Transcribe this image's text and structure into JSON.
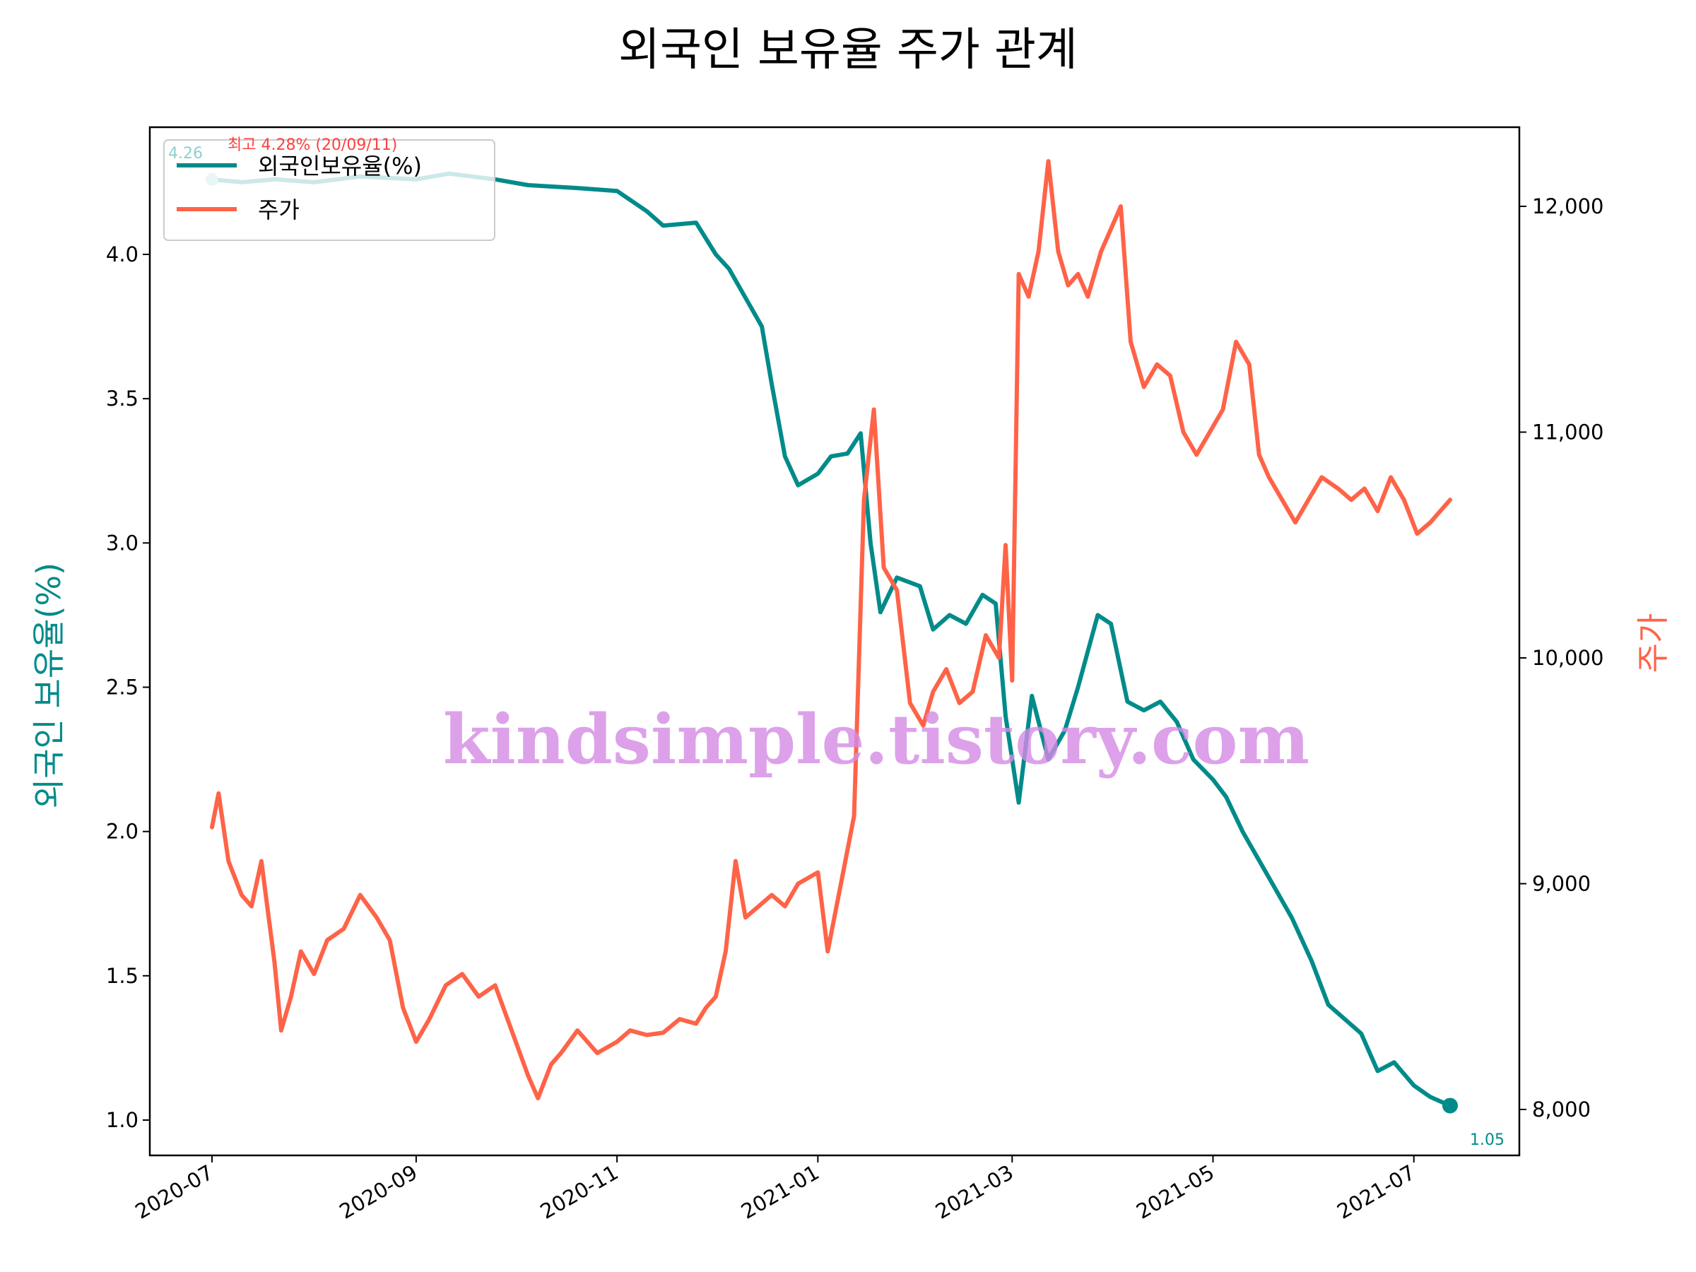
{
  "title": "외국인 보유율 주가 관계",
  "watermark": "kindsimple.tistory.com",
  "colors": {
    "ownership": "#008b8a",
    "price": "#ff6347",
    "watermark": "#d58ae6"
  },
  "chart_data": {
    "type": "line",
    "title": "외국인 보유율 주가 관계",
    "x_range": [
      "2020-07-01",
      "2021-07-12"
    ],
    "x_ticks": [
      "2020-07",
      "2020-09",
      "2020-11",
      "2021-01",
      "2021-03",
      "2021-05",
      "2021-07"
    ],
    "y_left": {
      "label": "외국인 보유율(%)",
      "range": [
        0.9,
        4.45
      ],
      "ticks": [
        "1.0",
        "1.5",
        "2.0",
        "2.5",
        "3.0",
        "3.5",
        "4.0"
      ]
    },
    "y_right": {
      "label": "주가",
      "range": [
        7800,
        12350
      ],
      "ticks": [
        "8,000",
        "9,000",
        "10,000",
        "11,000",
        "12,000"
      ]
    },
    "legend": {
      "placement": "upper-left",
      "entries": [
        "외국인보유율(%)",
        "주가"
      ]
    },
    "grid": false,
    "annotations": {
      "start_label": "4.26",
      "end_label": "1.05",
      "max_label": "최고 4.28% (20/09/11)"
    },
    "series": [
      {
        "name": "외국인보유율(%)",
        "axis": "left",
        "points": [
          [
            "2020-07-01",
            4.26
          ],
          [
            "2020-07-10",
            4.25
          ],
          [
            "2020-07-20",
            4.26
          ],
          [
            "2020-08-01",
            4.25
          ],
          [
            "2020-08-15",
            4.27
          ],
          [
            "2020-09-01",
            4.26
          ],
          [
            "2020-09-11",
            4.28
          ],
          [
            "2020-09-25",
            4.26
          ],
          [
            "2020-10-05",
            4.24
          ],
          [
            "2020-10-20",
            4.23
          ],
          [
            "2020-11-01",
            4.22
          ],
          [
            "2020-11-10",
            4.15
          ],
          [
            "2020-11-15",
            4.1
          ],
          [
            "2020-11-25",
            4.11
          ],
          [
            "2020-12-01",
            4.0
          ],
          [
            "2020-12-05",
            3.95
          ],
          [
            "2020-12-10",
            3.85
          ],
          [
            "2020-12-15",
            3.75
          ],
          [
            "2020-12-18",
            3.55
          ],
          [
            "2020-12-22",
            3.3
          ],
          [
            "2020-12-26",
            3.2
          ],
          [
            "2021-01-01",
            3.24
          ],
          [
            "2021-01-05",
            3.3
          ],
          [
            "2021-01-10",
            3.31
          ],
          [
            "2021-01-14",
            3.38
          ],
          [
            "2021-01-17",
            3.0
          ],
          [
            "2021-01-20",
            2.76
          ],
          [
            "2021-01-25",
            2.88
          ],
          [
            "2021-02-01",
            2.85
          ],
          [
            "2021-02-05",
            2.7
          ],
          [
            "2021-02-10",
            2.75
          ],
          [
            "2021-02-15",
            2.72
          ],
          [
            "2021-02-20",
            2.82
          ],
          [
            "2021-02-24",
            2.79
          ],
          [
            "2021-02-27",
            2.4
          ],
          [
            "2021-03-03",
            2.1
          ],
          [
            "2021-03-07",
            2.47
          ],
          [
            "2021-03-12",
            2.25
          ],
          [
            "2021-03-17",
            2.35
          ],
          [
            "2021-03-21",
            2.5
          ],
          [
            "2021-03-27",
            2.75
          ],
          [
            "2021-03-31",
            2.72
          ],
          [
            "2021-04-05",
            2.45
          ],
          [
            "2021-04-10",
            2.42
          ],
          [
            "2021-04-15",
            2.45
          ],
          [
            "2021-04-20",
            2.38
          ],
          [
            "2021-04-25",
            2.25
          ],
          [
            "2021-05-01",
            2.18
          ],
          [
            "2021-05-05",
            2.12
          ],
          [
            "2021-05-10",
            2.0
          ],
          [
            "2021-05-15",
            1.9
          ],
          [
            "2021-05-20",
            1.8
          ],
          [
            "2021-05-25",
            1.7
          ],
          [
            "2021-05-31",
            1.55
          ],
          [
            "2021-06-05",
            1.4
          ],
          [
            "2021-06-10",
            1.35
          ],
          [
            "2021-06-15",
            1.3
          ],
          [
            "2021-06-20",
            1.17
          ],
          [
            "2021-06-25",
            1.2
          ],
          [
            "2021-07-01",
            1.12
          ],
          [
            "2021-07-06",
            1.08
          ],
          [
            "2021-07-12",
            1.05
          ]
        ]
      },
      {
        "name": "주가",
        "axis": "right",
        "points": [
          [
            "2020-07-01",
            9250
          ],
          [
            "2020-07-03",
            9400
          ],
          [
            "2020-07-06",
            9100
          ],
          [
            "2020-07-10",
            8950
          ],
          [
            "2020-07-13",
            8900
          ],
          [
            "2020-07-16",
            9100
          ],
          [
            "2020-07-20",
            8650
          ],
          [
            "2020-07-22",
            8350
          ],
          [
            "2020-07-25",
            8500
          ],
          [
            "2020-07-28",
            8700
          ],
          [
            "2020-08-01",
            8600
          ],
          [
            "2020-08-05",
            8750
          ],
          [
            "2020-08-10",
            8800
          ],
          [
            "2020-08-15",
            8950
          ],
          [
            "2020-08-20",
            8850
          ],
          [
            "2020-08-24",
            8750
          ],
          [
            "2020-08-28",
            8450
          ],
          [
            "2020-09-01",
            8300
          ],
          [
            "2020-09-05",
            8400
          ],
          [
            "2020-09-10",
            8550
          ],
          [
            "2020-09-15",
            8600
          ],
          [
            "2020-09-20",
            8500
          ],
          [
            "2020-09-25",
            8550
          ],
          [
            "2020-09-30",
            8350
          ],
          [
            "2020-10-05",
            8150
          ],
          [
            "2020-10-08",
            8050
          ],
          [
            "2020-10-12",
            8200
          ],
          [
            "2020-10-15",
            8250
          ],
          [
            "2020-10-20",
            8350
          ],
          [
            "2020-10-23",
            8300
          ],
          [
            "2020-10-26",
            8250
          ],
          [
            "2020-11-01",
            8300
          ],
          [
            "2020-11-05",
            8350
          ],
          [
            "2020-11-10",
            8330
          ],
          [
            "2020-11-15",
            8340
          ],
          [
            "2020-11-20",
            8400
          ],
          [
            "2020-11-25",
            8380
          ],
          [
            "2020-11-28",
            8450
          ],
          [
            "2020-12-01",
            8500
          ],
          [
            "2020-12-04",
            8700
          ],
          [
            "2020-12-07",
            9100
          ],
          [
            "2020-12-10",
            8850
          ],
          [
            "2020-12-14",
            8900
          ],
          [
            "2020-12-18",
            8950
          ],
          [
            "2020-12-22",
            8900
          ],
          [
            "2020-12-26",
            9000
          ],
          [
            "2021-01-01",
            9050
          ],
          [
            "2021-01-04",
            8700
          ],
          [
            "2021-01-08",
            9000
          ],
          [
            "2021-01-12",
            9300
          ],
          [
            "2021-01-15",
            10700
          ],
          [
            "2021-01-18",
            11100
          ],
          [
            "2021-01-21",
            10400
          ],
          [
            "2021-01-25",
            10300
          ],
          [
            "2021-01-29",
            9800
          ],
          [
            "2021-02-02",
            9700
          ],
          [
            "2021-02-05",
            9850
          ],
          [
            "2021-02-09",
            9950
          ],
          [
            "2021-02-13",
            9800
          ],
          [
            "2021-02-17",
            9850
          ],
          [
            "2021-02-21",
            10100
          ],
          [
            "2021-02-25",
            10000
          ],
          [
            "2021-02-27",
            10500
          ],
          [
            "2021-03-01",
            9900
          ],
          [
            "2021-03-03",
            11700
          ],
          [
            "2021-03-06",
            11600
          ],
          [
            "2021-03-09",
            11800
          ],
          [
            "2021-03-12",
            12200
          ],
          [
            "2021-03-15",
            11800
          ],
          [
            "2021-03-18",
            11650
          ],
          [
            "2021-03-21",
            11700
          ],
          [
            "2021-03-24",
            11600
          ],
          [
            "2021-03-28",
            11800
          ],
          [
            "2021-03-31",
            11900
          ],
          [
            "2021-04-03",
            12000
          ],
          [
            "2021-04-06",
            11400
          ],
          [
            "2021-04-10",
            11200
          ],
          [
            "2021-04-14",
            11300
          ],
          [
            "2021-04-18",
            11250
          ],
          [
            "2021-04-22",
            11000
          ],
          [
            "2021-04-26",
            10900
          ],
          [
            "2021-04-30",
            11000
          ],
          [
            "2021-05-04",
            11100
          ],
          [
            "2021-05-08",
            11400
          ],
          [
            "2021-05-12",
            11300
          ],
          [
            "2021-05-15",
            10900
          ],
          [
            "2021-05-18",
            10800
          ],
          [
            "2021-05-22",
            10700
          ],
          [
            "2021-05-26",
            10600
          ],
          [
            "2021-05-30",
            10700
          ],
          [
            "2021-06-03",
            10800
          ],
          [
            "2021-06-08",
            10750
          ],
          [
            "2021-06-12",
            10700
          ],
          [
            "2021-06-16",
            10750
          ],
          [
            "2021-06-20",
            10650
          ],
          [
            "2021-06-24",
            10800
          ],
          [
            "2021-06-28",
            10700
          ],
          [
            "2021-07-02",
            10550
          ],
          [
            "2021-07-06",
            10600
          ],
          [
            "2021-07-09",
            10650
          ],
          [
            "2021-07-12",
            10700
          ]
        ]
      }
    ]
  }
}
